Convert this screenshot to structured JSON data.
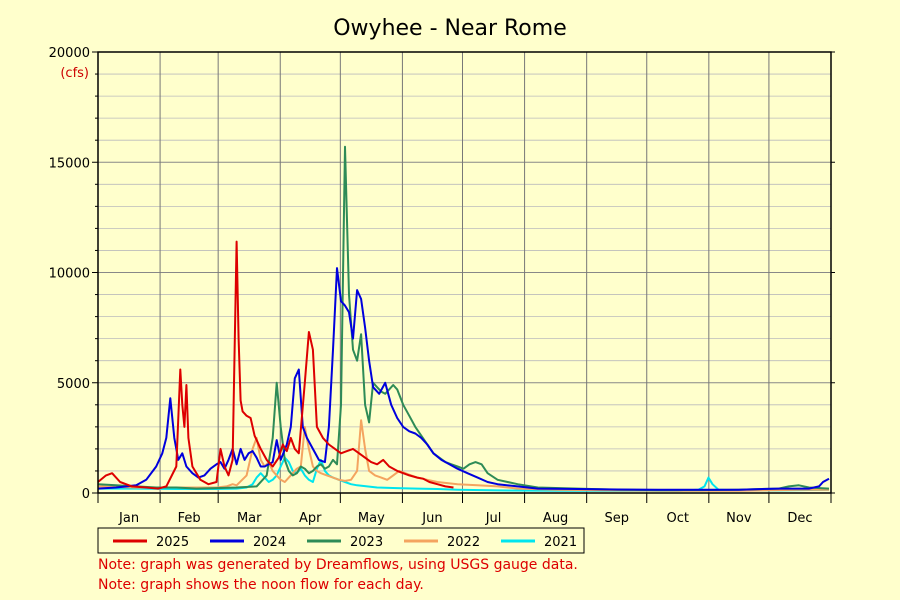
{
  "chart_data": {
    "type": "line",
    "title": "Owyhee - Near Rome",
    "ylabel": "(cfs)",
    "xlabel": "",
    "ylim": [
      0,
      20000
    ],
    "y_ticks": [
      0,
      5000,
      10000,
      15000,
      20000
    ],
    "x_tick_labels": [
      "Jan",
      "Feb",
      "Mar",
      "Apr",
      "May",
      "Jun",
      "Jul",
      "Aug",
      "Sep",
      "Oct",
      "Nov",
      "Dec"
    ],
    "grid": true,
    "legend_placement": "bottom",
    "series": [
      {
        "name": "2025",
        "color": "#dd0000",
        "points": [
          [
            1,
            500
          ],
          [
            5,
            800
          ],
          [
            8,
            900
          ],
          [
            12,
            500
          ],
          [
            18,
            300
          ],
          [
            25,
            250
          ],
          [
            31,
            200
          ],
          [
            35,
            300
          ],
          [
            40,
            1200
          ],
          [
            42,
            5600
          ],
          [
            43,
            4000
          ],
          [
            44,
            3000
          ],
          [
            45,
            4900
          ],
          [
            46,
            2500
          ],
          [
            48,
            1200
          ],
          [
            52,
            600
          ],
          [
            56,
            400
          ],
          [
            60,
            500
          ],
          [
            62,
            2000
          ],
          [
            64,
            1200
          ],
          [
            66,
            800
          ],
          [
            68,
            1500
          ],
          [
            70,
            11400
          ],
          [
            71,
            7000
          ],
          [
            72,
            4200
          ],
          [
            73,
            3700
          ],
          [
            75,
            3500
          ],
          [
            77,
            3400
          ],
          [
            79,
            2600
          ],
          [
            82,
            2000
          ],
          [
            85,
            1500
          ],
          [
            88,
            1200
          ],
          [
            91,
            1600
          ],
          [
            93,
            2200
          ],
          [
            95,
            1900
          ],
          [
            97,
            2500
          ],
          [
            99,
            2000
          ],
          [
            101,
            1800
          ],
          [
            104,
            5000
          ],
          [
            106,
            7300
          ],
          [
            108,
            6500
          ],
          [
            110,
            3000
          ],
          [
            113,
            2500
          ],
          [
            116,
            2200
          ],
          [
            119,
            2000
          ],
          [
            122,
            1800
          ],
          [
            125,
            1900
          ],
          [
            128,
            2000
          ],
          [
            131,
            1800
          ],
          [
            134,
            1600
          ],
          [
            137,
            1400
          ],
          [
            140,
            1300
          ],
          [
            143,
            1500
          ],
          [
            146,
            1200
          ],
          [
            150,
            1000
          ],
          [
            153,
            900
          ],
          [
            156,
            800
          ],
          [
            160,
            700
          ],
          [
            163,
            650
          ],
          [
            166,
            500
          ],
          [
            170,
            400
          ],
          [
            174,
            300
          ],
          [
            178,
            250
          ]
        ]
      },
      {
        "name": "2024",
        "color": "#0000dd",
        "points": [
          [
            1,
            200
          ],
          [
            10,
            250
          ],
          [
            20,
            350
          ],
          [
            25,
            600
          ],
          [
            30,
            1200
          ],
          [
            33,
            1800
          ],
          [
            35,
            2500
          ],
          [
            37,
            4300
          ],
          [
            39,
            2500
          ],
          [
            41,
            1500
          ],
          [
            43,
            1800
          ],
          [
            45,
            1200
          ],
          [
            48,
            900
          ],
          [
            51,
            700
          ],
          [
            54,
            800
          ],
          [
            57,
            1100
          ],
          [
            60,
            1300
          ],
          [
            62,
            1400
          ],
          [
            64,
            1100
          ],
          [
            66,
            1500
          ],
          [
            68,
            2000
          ],
          [
            70,
            1300
          ],
          [
            72,
            2000
          ],
          [
            74,
            1500
          ],
          [
            76,
            1800
          ],
          [
            78,
            1900
          ],
          [
            80,
            1600
          ],
          [
            82,
            1200
          ],
          [
            84,
            1200
          ],
          [
            86,
            1300
          ],
          [
            88,
            1400
          ],
          [
            90,
            2400
          ],
          [
            92,
            1500
          ],
          [
            95,
            2200
          ],
          [
            97,
            3000
          ],
          [
            99,
            5200
          ],
          [
            101,
            5600
          ],
          [
            103,
            3000
          ],
          [
            105,
            2500
          ],
          [
            108,
            2000
          ],
          [
            111,
            1500
          ],
          [
            114,
            1400
          ],
          [
            116,
            3000
          ],
          [
            118,
            6500
          ],
          [
            120,
            10200
          ],
          [
            122,
            8700
          ],
          [
            124,
            8500
          ],
          [
            126,
            8200
          ],
          [
            128,
            7000
          ],
          [
            130,
            9200
          ],
          [
            132,
            8800
          ],
          [
            134,
            7500
          ],
          [
            136,
            6000
          ],
          [
            138,
            4800
          ],
          [
            141,
            4500
          ],
          [
            144,
            5000
          ],
          [
            147,
            4000
          ],
          [
            150,
            3400
          ],
          [
            153,
            3000
          ],
          [
            156,
            2800
          ],
          [
            159,
            2700
          ],
          [
            162,
            2500
          ],
          [
            165,
            2200
          ],
          [
            168,
            1800
          ],
          [
            172,
            1500
          ],
          [
            176,
            1300
          ],
          [
            180,
            1100
          ],
          [
            185,
            900
          ],
          [
            190,
            700
          ],
          [
            195,
            500
          ],
          [
            200,
            400
          ],
          [
            210,
            300
          ],
          [
            220,
            200
          ],
          [
            240,
            180
          ],
          [
            260,
            160
          ],
          [
            280,
            150
          ],
          [
            300,
            150
          ],
          [
            320,
            150
          ],
          [
            340,
            200
          ],
          [
            355,
            200
          ],
          [
            360,
            300
          ],
          [
            362,
            500
          ],
          [
            365,
            650
          ]
        ]
      },
      {
        "name": "2023",
        "color": "#2e8b57",
        "points": [
          [
            1,
            400
          ],
          [
            10,
            350
          ],
          [
            20,
            300
          ],
          [
            30,
            250
          ],
          [
            40,
            250
          ],
          [
            50,
            200
          ],
          [
            60,
            220
          ],
          [
            70,
            250
          ],
          [
            80,
            300
          ],
          [
            85,
            800
          ],
          [
            88,
            2500
          ],
          [
            90,
            5000
          ],
          [
            92,
            3000
          ],
          [
            94,
            1500
          ],
          [
            96,
            1000
          ],
          [
            98,
            800
          ],
          [
            100,
            900
          ],
          [
            102,
            1200
          ],
          [
            104,
            1100
          ],
          [
            106,
            900
          ],
          [
            108,
            1000
          ],
          [
            110,
            1200
          ],
          [
            112,
            1300
          ],
          [
            114,
            1100
          ],
          [
            116,
            1200
          ],
          [
            118,
            1500
          ],
          [
            120,
            1300
          ],
          [
            122,
            4000
          ],
          [
            124,
            15700
          ],
          [
            126,
            9000
          ],
          [
            128,
            6500
          ],
          [
            130,
            6000
          ],
          [
            132,
            7200
          ],
          [
            134,
            4000
          ],
          [
            136,
            3200
          ],
          [
            138,
            5000
          ],
          [
            140,
            4800
          ],
          [
            142,
            4600
          ],
          [
            144,
            4500
          ],
          [
            146,
            4700
          ],
          [
            148,
            4900
          ],
          [
            150,
            4700
          ],
          [
            153,
            4000
          ],
          [
            156,
            3500
          ],
          [
            159,
            3000
          ],
          [
            162,
            2600
          ],
          [
            165,
            2200
          ],
          [
            168,
            1800
          ],
          [
            171,
            1600
          ],
          [
            174,
            1400
          ],
          [
            177,
            1300
          ],
          [
            180,
            1200
          ],
          [
            183,
            1100
          ],
          [
            186,
            1300
          ],
          [
            189,
            1400
          ],
          [
            192,
            1300
          ],
          [
            195,
            900
          ],
          [
            200,
            600
          ],
          [
            210,
            400
          ],
          [
            220,
            250
          ],
          [
            240,
            200
          ],
          [
            260,
            150
          ],
          [
            280,
            130
          ],
          [
            300,
            130
          ],
          [
            320,
            150
          ],
          [
            340,
            200
          ],
          [
            345,
            300
          ],
          [
            350,
            350
          ],
          [
            355,
            250
          ],
          [
            365,
            200
          ]
        ]
      },
      {
        "name": "2022",
        "color": "#f4a460",
        "points": [
          [
            1,
            300
          ],
          [
            20,
            250
          ],
          [
            40,
            250
          ],
          [
            60,
            250
          ],
          [
            65,
            300
          ],
          [
            68,
            400
          ],
          [
            70,
            350
          ],
          [
            75,
            800
          ],
          [
            78,
            2000
          ],
          [
            80,
            2500
          ],
          [
            82,
            1500
          ],
          [
            84,
            1200
          ],
          [
            86,
            1400
          ],
          [
            88,
            1000
          ],
          [
            90,
            800
          ],
          [
            92,
            600
          ],
          [
            94,
            500
          ],
          [
            96,
            700
          ],
          [
            98,
            900
          ],
          [
            100,
            1100
          ],
          [
            102,
            1200
          ],
          [
            104,
            3000
          ],
          [
            106,
            2000
          ],
          [
            108,
            1200
          ],
          [
            110,
            1000
          ],
          [
            112,
            900
          ],
          [
            115,
            800
          ],
          [
            118,
            700
          ],
          [
            121,
            600
          ],
          [
            124,
            550
          ],
          [
            127,
            600
          ],
          [
            130,
            1000
          ],
          [
            132,
            3300
          ],
          [
            134,
            2000
          ],
          [
            136,
            1000
          ],
          [
            139,
            800
          ],
          [
            142,
            700
          ],
          [
            145,
            600
          ],
          [
            148,
            800
          ],
          [
            151,
            1000
          ],
          [
            154,
            900
          ],
          [
            157,
            800
          ],
          [
            160,
            700
          ],
          [
            165,
            600
          ],
          [
            170,
            500
          ],
          [
            180,
            400
          ],
          [
            190,
            350
          ],
          [
            200,
            300
          ],
          [
            210,
            200
          ],
          [
            230,
            150
          ],
          [
            260,
            120
          ],
          [
            290,
            100
          ],
          [
            320,
            100
          ],
          [
            350,
            150
          ],
          [
            365,
            150
          ]
        ]
      },
      {
        "name": "2021",
        "color": "#00e5ee",
        "points": [
          [
            1,
            200
          ],
          [
            20,
            200
          ],
          [
            40,
            180
          ],
          [
            60,
            180
          ],
          [
            70,
            200
          ],
          [
            75,
            250
          ],
          [
            78,
            400
          ],
          [
            80,
            700
          ],
          [
            82,
            900
          ],
          [
            84,
            700
          ],
          [
            86,
            500
          ],
          [
            88,
            600
          ],
          [
            90,
            800
          ],
          [
            92,
            1200
          ],
          [
            94,
            1600
          ],
          [
            96,
            1400
          ],
          [
            98,
            1000
          ],
          [
            100,
            900
          ],
          [
            102,
            1100
          ],
          [
            104,
            800
          ],
          [
            106,
            600
          ],
          [
            108,
            500
          ],
          [
            110,
            1100
          ],
          [
            112,
            1500
          ],
          [
            114,
            1000
          ],
          [
            116,
            800
          ],
          [
            118,
            700
          ],
          [
            121,
            600
          ],
          [
            124,
            500
          ],
          [
            127,
            400
          ],
          [
            130,
            350
          ],
          [
            135,
            300
          ],
          [
            140,
            250
          ],
          [
            150,
            220
          ],
          [
            160,
            200
          ],
          [
            170,
            180
          ],
          [
            180,
            150
          ],
          [
            200,
            120
          ],
          [
            230,
            100
          ],
          [
            260,
            100
          ],
          [
            290,
            100
          ],
          [
            300,
            150
          ],
          [
            303,
            300
          ],
          [
            305,
            700
          ],
          [
            307,
            400
          ],
          [
            310,
            150
          ],
          [
            320,
            120
          ],
          [
            340,
            120
          ],
          [
            365,
            150
          ]
        ]
      }
    ]
  },
  "notes": [
    "Note: graph was generated by Dreamflows, using USGS gauge data.",
    "Note: graph shows the noon flow for each day."
  ]
}
